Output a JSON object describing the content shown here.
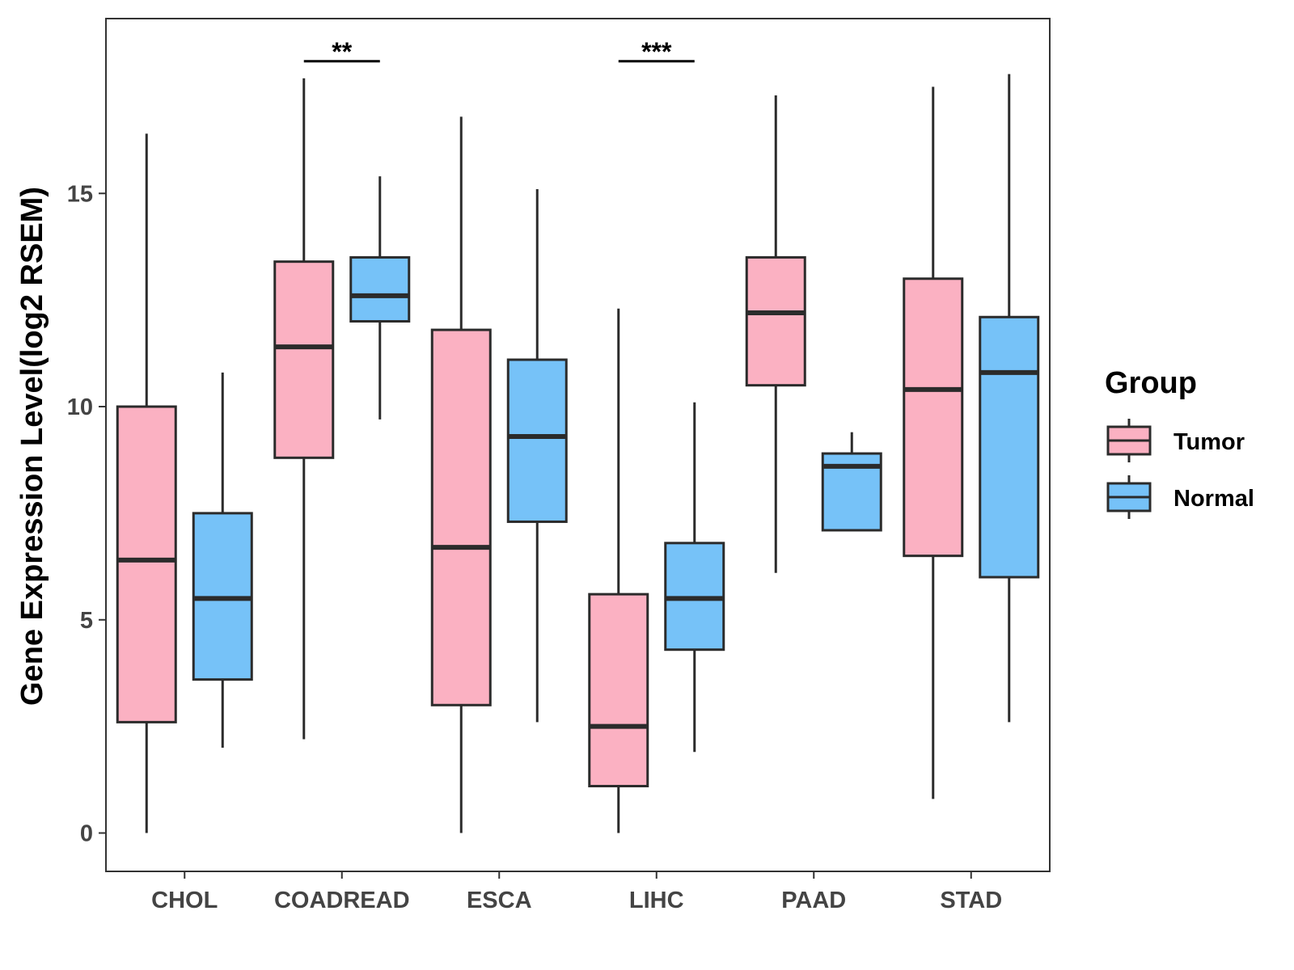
{
  "chart_data": {
    "type": "boxplot",
    "title": "",
    "xlabel": "",
    "ylabel": "Gene Expression Level(log2 RSEM)",
    "ylim": [
      -0.9,
      19.1
    ],
    "yticks": [
      0,
      5,
      10,
      15
    ],
    "ytick_labels": [
      "0",
      "5",
      "10",
      "15"
    ],
    "categories": [
      "CHOL",
      "COADREAD",
      "ESCA",
      "LIHC",
      "PAAD",
      "STAD"
    ],
    "legend": {
      "title": "Group",
      "position": "right",
      "entries": [
        "Tumor",
        "Normal"
      ]
    },
    "colors": {
      "Tumor": "#fbb1c2",
      "Normal": "#76c2f8",
      "outline": "#2b2b2b",
      "frame": "#333333",
      "background": "#ffffff"
    },
    "series": [
      {
        "name": "Tumor",
        "boxes": [
          {
            "category": "CHOL",
            "min": 0.0,
            "q1": 2.6,
            "median": 6.4,
            "q3": 10.0,
            "max": 16.4
          },
          {
            "category": "COADREAD",
            "min": 2.2,
            "q1": 8.8,
            "median": 11.4,
            "q3": 13.4,
            "max": 17.7
          },
          {
            "category": "ESCA",
            "min": 0.0,
            "q1": 3.0,
            "median": 6.7,
            "q3": 11.8,
            "max": 16.8
          },
          {
            "category": "LIHC",
            "min": 0.0,
            "q1": 1.1,
            "median": 2.5,
            "q3": 5.6,
            "max": 12.3
          },
          {
            "category": "PAAD",
            "min": 6.1,
            "q1": 10.5,
            "median": 12.2,
            "q3": 13.5,
            "max": 17.3
          },
          {
            "category": "STAD",
            "min": 0.8,
            "q1": 6.5,
            "median": 10.4,
            "q3": 13.0,
            "max": 17.5
          }
        ]
      },
      {
        "name": "Normal",
        "boxes": [
          {
            "category": "CHOL",
            "min": 2.0,
            "q1": 3.6,
            "median": 5.5,
            "q3": 7.5,
            "max": 10.8
          },
          {
            "category": "COADREAD",
            "min": 9.7,
            "q1": 12.0,
            "median": 12.6,
            "q3": 13.5,
            "max": 15.4
          },
          {
            "category": "ESCA",
            "min": 2.6,
            "q1": 7.3,
            "median": 9.3,
            "q3": 11.1,
            "max": 15.1
          },
          {
            "category": "LIHC",
            "min": 1.9,
            "q1": 4.3,
            "median": 5.5,
            "q3": 6.8,
            "max": 10.1
          },
          {
            "category": "PAAD",
            "min": 7.1,
            "q1": 7.1,
            "median": 8.6,
            "q3": 8.9,
            "max": 9.4
          },
          {
            "category": "STAD",
            "min": 2.6,
            "q1": 6.0,
            "median": 10.8,
            "q3": 12.1,
            "max": 17.8
          }
        ]
      }
    ],
    "annotations": [
      {
        "category": "COADREAD",
        "label": "**",
        "y": 18.1
      },
      {
        "category": "LIHC",
        "label": "***",
        "y": 18.1
      }
    ]
  }
}
